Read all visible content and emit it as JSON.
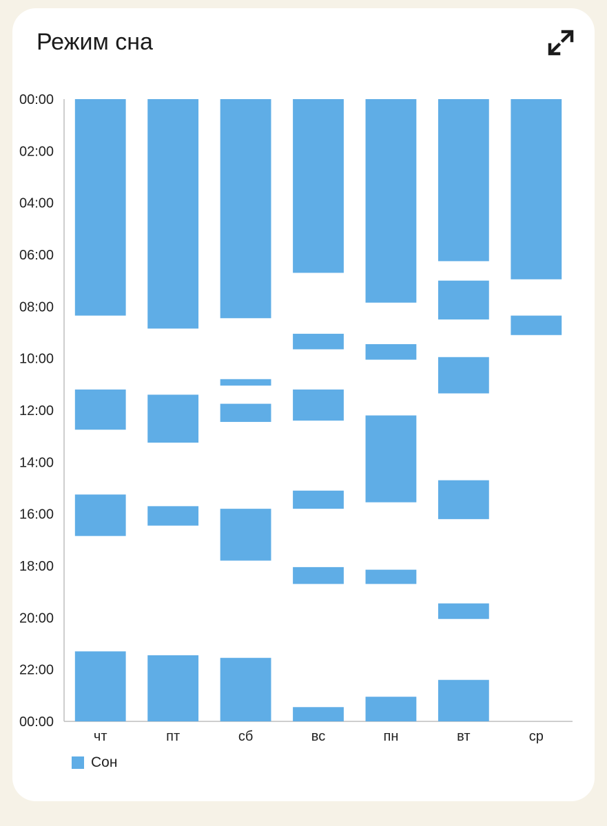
{
  "card": {
    "title": "Режим сна",
    "expand_icon": "expand-arrows-icon"
  },
  "colors": {
    "background": "#f6f2e7",
    "card": "#ffffff",
    "bar": "#5fade6",
    "axis": "#bdbdbd",
    "text": "#222222"
  },
  "chart_data": {
    "type": "bar",
    "subtype": "floating-range",
    "categories": [
      "чт",
      "пт",
      "сб",
      "вс",
      "пн",
      "вт",
      "ср"
    ],
    "y_tick_labels": [
      "00:00",
      "02:00",
      "04:00",
      "06:00",
      "08:00",
      "10:00",
      "12:00",
      "14:00",
      "16:00",
      "18:00",
      "20:00",
      "22:00",
      "00:00"
    ],
    "ylim": [
      0,
      24
    ],
    "y_inverted": true,
    "grid": false,
    "legend_position": "bottom-left",
    "series": [
      {
        "name": "Сон",
        "ranges": [
          [
            [
              0,
              8.35
            ],
            [
              11.2,
              12.75
            ],
            [
              15.25,
              16.85
            ],
            [
              21.3,
              24
            ]
          ],
          [
            [
              0,
              8.85
            ],
            [
              11.4,
              13.25
            ],
            [
              15.7,
              16.45
            ],
            [
              21.45,
              24
            ]
          ],
          [
            [
              0,
              8.45
            ],
            [
              10.8,
              11.05
            ],
            [
              11.75,
              12.45
            ],
            [
              15.8,
              17.8
            ],
            [
              21.55,
              24
            ]
          ],
          [
            [
              0,
              6.7
            ],
            [
              9.05,
              9.65
            ],
            [
              11.2,
              12.4
            ],
            [
              15.1,
              15.8
            ],
            [
              18.05,
              18.7
            ],
            [
              23.45,
              24
            ]
          ],
          [
            [
              0,
              7.85
            ],
            [
              9.45,
              10.05
            ],
            [
              12.2,
              15.55
            ],
            [
              18.15,
              18.7
            ],
            [
              23.05,
              24
            ]
          ],
          [
            [
              0,
              6.25
            ],
            [
              7.0,
              8.5
            ],
            [
              9.95,
              11.35
            ],
            [
              14.7,
              16.2
            ],
            [
              19.45,
              20.05
            ],
            [
              22.4,
              24
            ]
          ],
          [
            [
              0,
              6.95
            ],
            [
              8.35,
              9.1
            ]
          ]
        ]
      }
    ]
  }
}
